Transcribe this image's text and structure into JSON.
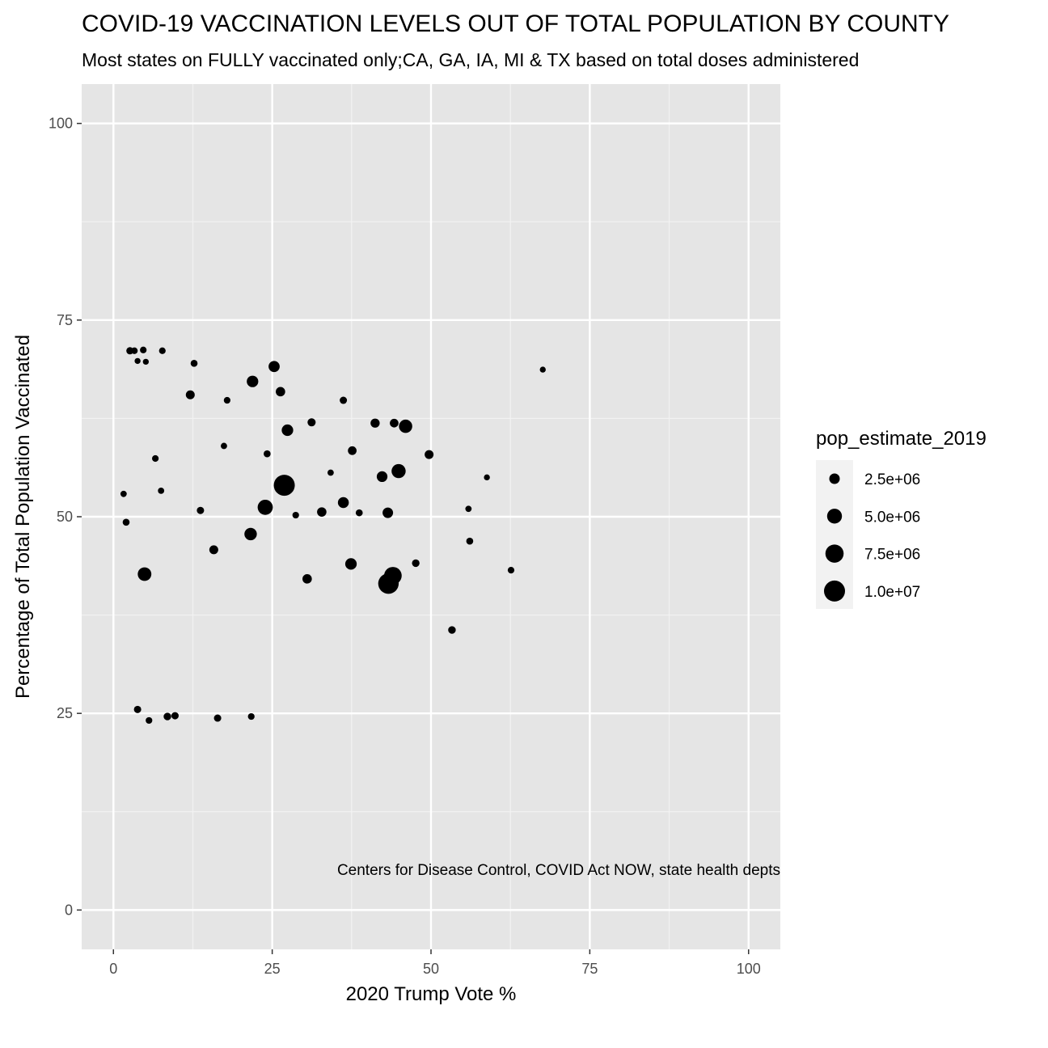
{
  "chart_data": {
    "type": "scatter",
    "title": "COVID-19 VACCINATION LEVELS OUT OF TOTAL POPULATION BY COUNTY",
    "subtitle": "Most states on FULLY vaccinated only;CA, GA, IA, MI & TX based on total doses administered",
    "xlabel": "2020 Trump Vote %",
    "ylabel": "Percentage of Total Population Vaccinated",
    "caption": "Centers for Disease Control, COVID Act NOW, state health depts",
    "xlim": [
      -5,
      105
    ],
    "ylim": [
      -5,
      105
    ],
    "x_ticks": [
      0,
      25,
      50,
      75,
      100
    ],
    "y_ticks": [
      0,
      25,
      50,
      75,
      100
    ],
    "x_tick_labels": [
      "0",
      "25",
      "50",
      "75",
      "100"
    ],
    "y_tick_labels": [
      "0",
      "25",
      "50",
      "75",
      "100"
    ],
    "grid": true,
    "panel_background": "#e5e5e5",
    "point_color": "#000000",
    "size_variable": "pop_estimate_2019",
    "legend": {
      "title": "pop_estimate_2019",
      "position": "right",
      "entries": [
        {
          "label": "2.5e+06",
          "value": 2500000
        },
        {
          "label": "5.0e+06",
          "value": 5000000
        },
        {
          "label": "7.5e+06",
          "value": 7500000
        },
        {
          "label": "1.0e+07",
          "value": 10000000
        }
      ]
    },
    "points": [
      {
        "x": 26.9,
        "y": 54.0,
        "pop": 10000000
      },
      {
        "x": 43.3,
        "y": 41.5,
        "pop": 9500000
      },
      {
        "x": 44.0,
        "y": 42.5,
        "pop": 7000000
      },
      {
        "x": 23.9,
        "y": 51.2,
        "pop": 5200000
      },
      {
        "x": 44.9,
        "y": 55.8,
        "pop": 4500000
      },
      {
        "x": 46.0,
        "y": 61.5,
        "pop": 4000000
      },
      {
        "x": 4.9,
        "y": 42.7,
        "pop": 4200000
      },
      {
        "x": 25.3,
        "y": 69.1,
        "pop": 2800000
      },
      {
        "x": 21.9,
        "y": 67.2,
        "pop": 3000000
      },
      {
        "x": 27.4,
        "y": 61.0,
        "pop": 3000000
      },
      {
        "x": 21.6,
        "y": 47.8,
        "pop": 3500000
      },
      {
        "x": 37.4,
        "y": 44.0,
        "pop": 3000000
      },
      {
        "x": 36.2,
        "y": 51.8,
        "pop": 2700000
      },
      {
        "x": 43.2,
        "y": 50.5,
        "pop": 2500000
      },
      {
        "x": 42.3,
        "y": 55.1,
        "pop": 2600000
      },
      {
        "x": 30.5,
        "y": 42.1,
        "pop": 2000000
      },
      {
        "x": 26.3,
        "y": 65.9,
        "pop": 2000000
      },
      {
        "x": 12.1,
        "y": 65.5,
        "pop": 1800000
      },
      {
        "x": 15.8,
        "y": 45.8,
        "pop": 1800000
      },
      {
        "x": 32.8,
        "y": 50.6,
        "pop": 2000000
      },
      {
        "x": 49.7,
        "y": 57.9,
        "pop": 1800000
      },
      {
        "x": 41.2,
        "y": 61.9,
        "pop": 1900000
      },
      {
        "x": 37.6,
        "y": 58.4,
        "pop": 1700000
      },
      {
        "x": 44.2,
        "y": 61.9,
        "pop": 1700000
      },
      {
        "x": 31.2,
        "y": 62.0,
        "pop": 1500000
      },
      {
        "x": 36.2,
        "y": 64.8,
        "pop": 1200000
      },
      {
        "x": 53.3,
        "y": 35.6,
        "pop": 1300000
      },
      {
        "x": 16.4,
        "y": 24.4,
        "pop": 1200000
      },
      {
        "x": 21.7,
        "y": 24.6,
        "pop": 1000000
      },
      {
        "x": 8.5,
        "y": 24.6,
        "pop": 1300000
      },
      {
        "x": 9.7,
        "y": 24.7,
        "pop": 1200000
      },
      {
        "x": 3.8,
        "y": 25.5,
        "pop": 1200000
      },
      {
        "x": 5.6,
        "y": 24.1,
        "pop": 1000000
      },
      {
        "x": 2.6,
        "y": 71.1,
        "pop": 1200000
      },
      {
        "x": 3.3,
        "y": 71.1,
        "pop": 1000000
      },
      {
        "x": 4.7,
        "y": 71.2,
        "pop": 1000000
      },
      {
        "x": 7.7,
        "y": 71.1,
        "pop": 1000000
      },
      {
        "x": 3.8,
        "y": 69.8,
        "pop": 800000
      },
      {
        "x": 5.1,
        "y": 69.7,
        "pop": 800000
      },
      {
        "x": 12.7,
        "y": 69.5,
        "pop": 1100000
      },
      {
        "x": 17.9,
        "y": 64.8,
        "pop": 1000000
      },
      {
        "x": 17.4,
        "y": 59.0,
        "pop": 900000
      },
      {
        "x": 6.6,
        "y": 57.4,
        "pop": 1000000
      },
      {
        "x": 7.5,
        "y": 53.3,
        "pop": 900000
      },
      {
        "x": 1.6,
        "y": 52.9,
        "pop": 900000
      },
      {
        "x": 2.0,
        "y": 49.3,
        "pop": 1100000
      },
      {
        "x": 13.7,
        "y": 50.8,
        "pop": 1200000
      },
      {
        "x": 56.1,
        "y": 46.9,
        "pop": 1100000
      },
      {
        "x": 55.9,
        "y": 51.0,
        "pop": 900000
      },
      {
        "x": 58.8,
        "y": 55.0,
        "pop": 800000
      },
      {
        "x": 67.6,
        "y": 68.7,
        "pop": 800000
      },
      {
        "x": 62.6,
        "y": 43.2,
        "pop": 1000000
      },
      {
        "x": 47.6,
        "y": 44.1,
        "pop": 1300000
      },
      {
        "x": 38.7,
        "y": 50.5,
        "pop": 1100000
      },
      {
        "x": 28.7,
        "y": 50.2,
        "pop": 1000000
      },
      {
        "x": 24.2,
        "y": 58.0,
        "pop": 1100000
      },
      {
        "x": 34.2,
        "y": 55.6,
        "pop": 900000
      }
    ]
  }
}
